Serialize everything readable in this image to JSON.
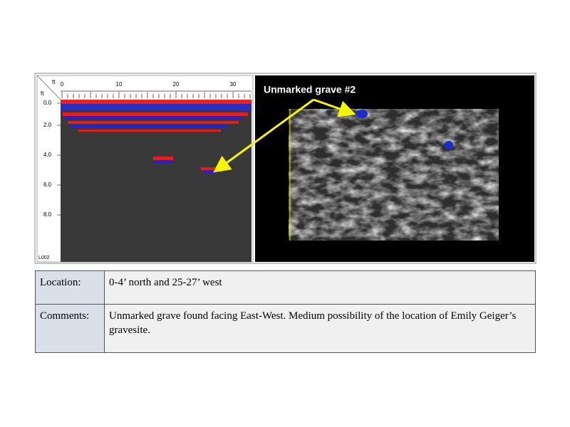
{
  "radargram": {
    "x_unit": "ft",
    "y_unit": "ft",
    "x_ticks": [
      "0",
      "10",
      "20",
      "30"
    ],
    "depth_ticks": [
      "0.0",
      "2.0",
      "4.0",
      "6.0",
      "8.0"
    ],
    "line_id": "L002"
  },
  "depth_slice": {
    "annotation": "Unmarked grave #2"
  },
  "table": {
    "rows": [
      [
        "Location:",
        "0-4’ north and 25-27’ west"
      ],
      [
        "Comments:",
        "Unmarked grave found facing East-West. Medium possibility of the location of Emily Geiger’s gravesite."
      ]
    ]
  }
}
